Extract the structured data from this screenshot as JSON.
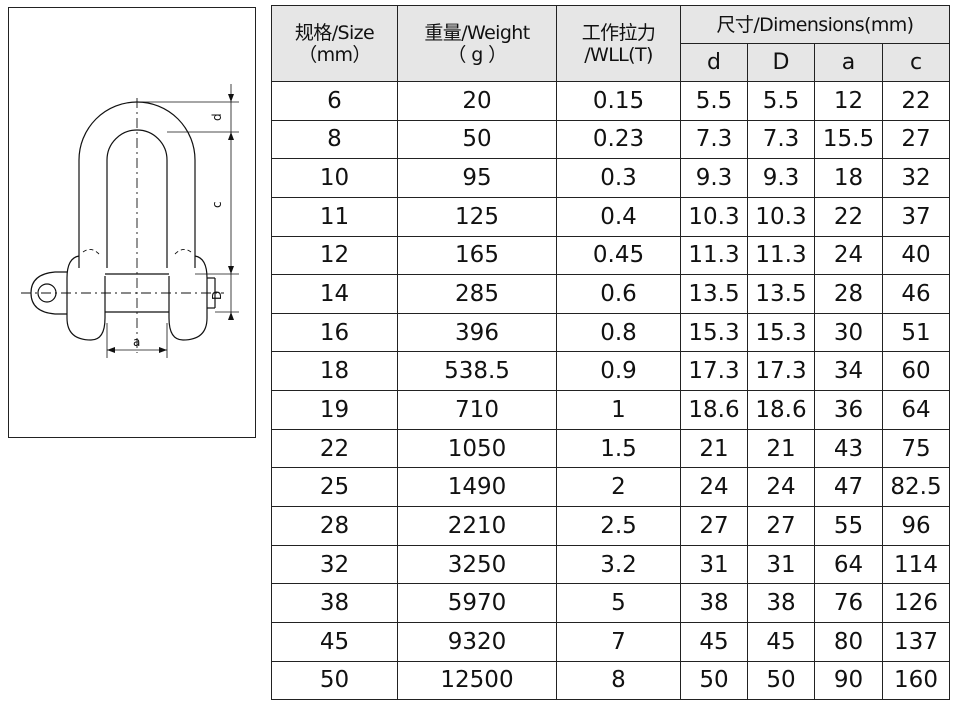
{
  "diagram": {
    "labels": {
      "d": "d",
      "D": "D",
      "a": "a",
      "c": "c"
    }
  },
  "table": {
    "headers": {
      "size": {
        "line1": "规格/Size",
        "line2": "（mm）"
      },
      "weight": {
        "line1": "重量/Weight",
        "line2": "（ g ）"
      },
      "wll": {
        "line1": "工作拉力",
        "line2": "/WLL(T)"
      },
      "dimensions": "尺寸/Dimensions(mm)",
      "dim_cols": [
        "d",
        "D",
        "a",
        "c"
      ]
    },
    "rows": [
      {
        "size": "6",
        "weight": "20",
        "wll": "0.15",
        "d": "5.5",
        "D": "5.5",
        "a": "12",
        "c": "22"
      },
      {
        "size": "8",
        "weight": "50",
        "wll": "0.23",
        "d": "7.3",
        "D": "7.3",
        "a": "15.5",
        "c": "27"
      },
      {
        "size": "10",
        "weight": "95",
        "wll": "0.3",
        "d": "9.3",
        "D": "9.3",
        "a": "18",
        "c": "32"
      },
      {
        "size": "11",
        "weight": "125",
        "wll": "0.4",
        "d": "10.3",
        "D": "10.3",
        "a": "22",
        "c": "37"
      },
      {
        "size": "12",
        "weight": "165",
        "wll": "0.45",
        "d": "11.3",
        "D": "11.3",
        "a": "24",
        "c": "40"
      },
      {
        "size": "14",
        "weight": "285",
        "wll": "0.6",
        "d": "13.5",
        "D": "13.5",
        "a": "28",
        "c": "46"
      },
      {
        "size": "16",
        "weight": "396",
        "wll": "0.8",
        "d": "15.3",
        "D": "15.3",
        "a": "30",
        "c": "51"
      },
      {
        "size": "18",
        "weight": "538.5",
        "wll": "0.9",
        "d": "17.3",
        "D": "17.3",
        "a": "34",
        "c": "60"
      },
      {
        "size": "19",
        "weight": "710",
        "wll": "1",
        "d": "18.6",
        "D": "18.6",
        "a": "36",
        "c": "64"
      },
      {
        "size": "22",
        "weight": "1050",
        "wll": "1.5",
        "d": "21",
        "D": "21",
        "a": "43",
        "c": "75"
      },
      {
        "size": "25",
        "weight": "1490",
        "wll": "2",
        "d": "24",
        "D": "24",
        "a": "47",
        "c": "82.5"
      },
      {
        "size": "28",
        "weight": "2210",
        "wll": "2.5",
        "d": "27",
        "D": "27",
        "a": "55",
        "c": "96"
      },
      {
        "size": "32",
        "weight": "3250",
        "wll": "3.2",
        "d": "31",
        "D": "31",
        "a": "64",
        "c": "114"
      },
      {
        "size": "38",
        "weight": "5970",
        "wll": "5",
        "d": "38",
        "D": "38",
        "a": "76",
        "c": "126"
      },
      {
        "size": "45",
        "weight": "9320",
        "wll": "7",
        "d": "45",
        "D": "45",
        "a": "80",
        "c": "137"
      },
      {
        "size": "50",
        "weight": "12500",
        "wll": "8",
        "d": "50",
        "D": "50",
        "a": "90",
        "c": "160"
      }
    ]
  }
}
